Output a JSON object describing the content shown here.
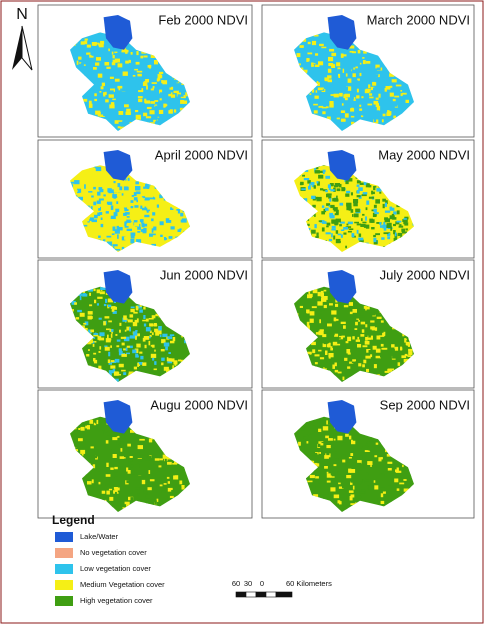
{
  "north_arrow": "N",
  "panels": [
    {
      "title": "Feb 2000 NDVI"
    },
    {
      "title": "March 2000 NDVI"
    },
    {
      "title": "April 2000 NDVI"
    },
    {
      "title": "May 2000 NDVI"
    },
    {
      "title": "Jun 2000 NDVI"
    },
    {
      "title": "July 2000 NDVI"
    },
    {
      "title": "Augu 2000 NDVI"
    },
    {
      "title": "Sep 2000 NDVI"
    }
  ],
  "legend": {
    "title": "Legend",
    "items": [
      {
        "label": "Lake/Water",
        "color": "#1f5bd6"
      },
      {
        "label": "No vegetation cover",
        "color": "#f4a582"
      },
      {
        "label": "Low vegetation cover",
        "color": "#2ec3ec"
      },
      {
        "label": "Medium Vegetation cover",
        "color": "#f5ef16"
      },
      {
        "label": "High vegetation cover",
        "color": "#3f9e12"
      }
    ]
  },
  "scale_bar": {
    "labels": [
      "60",
      "30",
      "0",
      "60 Kilometers"
    ]
  }
}
